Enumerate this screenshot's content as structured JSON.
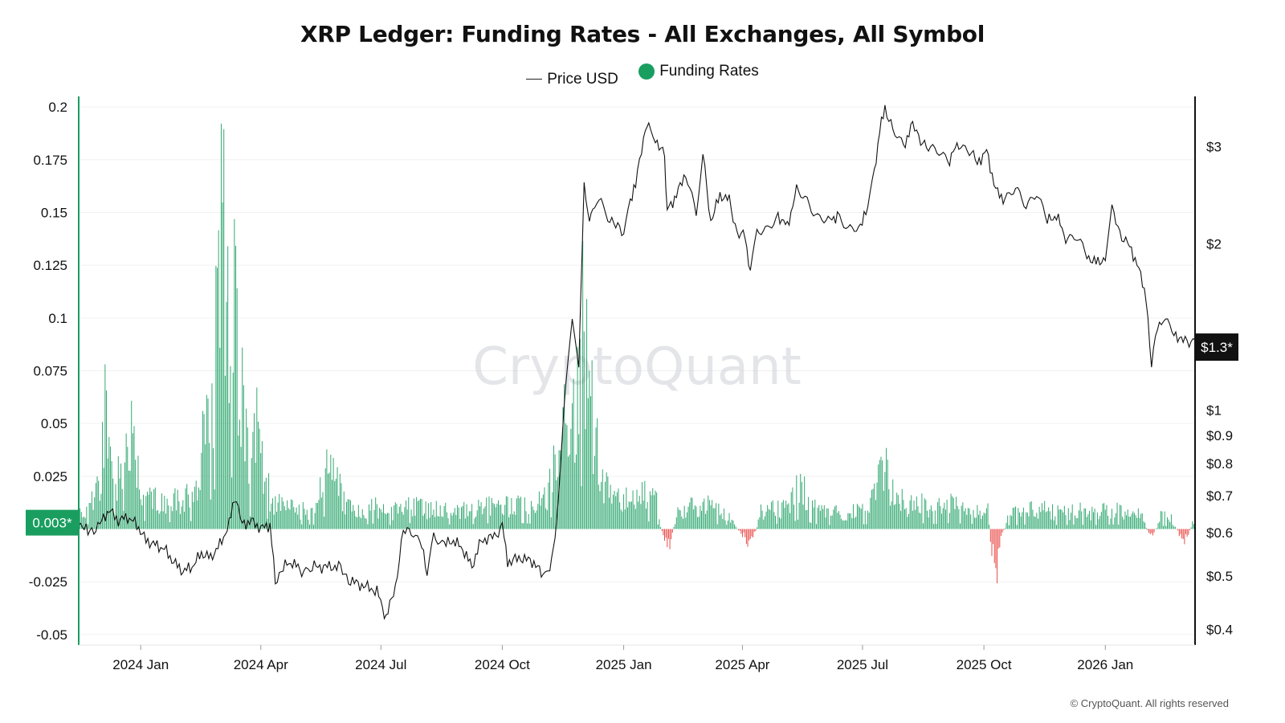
{
  "chart_data": {
    "type": "bar+line",
    "title": "XRP Ledger: Funding Rates - All Exchanges, All Symbol",
    "legend": [
      {
        "name": "Price USD",
        "style": "line",
        "color": "#222222"
      },
      {
        "name": "Funding Rates",
        "style": "dot",
        "color": "#1a9e60"
      }
    ],
    "x_range": [
      "2023-11-15",
      "2026-03-10"
    ],
    "x_ticks": [
      {
        "date": "2024-01-01",
        "label": "2024 Jan"
      },
      {
        "date": "2024-04-01",
        "label": "2024 Apr"
      },
      {
        "date": "2024-07-01",
        "label": "2024 Jul"
      },
      {
        "date": "2024-10-01",
        "label": "2024 Oct"
      },
      {
        "date": "2025-01-01",
        "label": "2025 Jan"
      },
      {
        "date": "2025-04-01",
        "label": "2025 Apr"
      },
      {
        "date": "2025-07-01",
        "label": "2025 Jul"
      },
      {
        "date": "2025-10-01",
        "label": "2025 Oct"
      },
      {
        "date": "2026-01-01",
        "label": "2026 Jan"
      }
    ],
    "y_left": {
      "series": "Funding Rates",
      "ylim": [
        -0.055,
        0.205
      ],
      "ticks": [
        {
          "value": 0.2,
          "label": "0.2"
        },
        {
          "value": 0.175,
          "label": "0.175"
        },
        {
          "value": 0.15,
          "label": "0.15"
        },
        {
          "value": 0.125,
          "label": "0.125"
        },
        {
          "value": 0.1,
          "label": "0.1"
        },
        {
          "value": 0.075,
          "label": "0.075"
        },
        {
          "value": 0.05,
          "label": "0.05"
        },
        {
          "value": 0.025,
          "label": "0.025"
        },
        {
          "value": -0.025,
          "label": "-0.025"
        },
        {
          "value": -0.05,
          "label": "-0.05"
        }
      ],
      "current_label": "0.003*",
      "current_value": 0.003,
      "color": "#1a9e60"
    },
    "y_right": {
      "series": "Price USD",
      "scale": "log",
      "ylim": [
        0.375,
        3.7
      ],
      "ticks": [
        {
          "value": 3,
          "label": "$3"
        },
        {
          "value": 2,
          "label": "$2"
        },
        {
          "value": 1,
          "label": "$1"
        },
        {
          "value": 0.9,
          "label": "$0.9"
        },
        {
          "value": 0.8,
          "label": "$0.8"
        },
        {
          "value": 0.7,
          "label": "$0.7"
        },
        {
          "value": 0.6,
          "label": "$0.6"
        },
        {
          "value": 0.5,
          "label": "$0.5"
        },
        {
          "value": 0.4,
          "label": "$0.4"
        }
      ],
      "current_label": "$1.3*",
      "current_value": 1.3,
      "color": "#111111"
    },
    "price_series": [
      [
        "2023-11-15",
        0.63
      ],
      [
        "2023-11-22",
        0.6
      ],
      [
        "2023-12-01",
        0.62
      ],
      [
        "2023-12-08",
        0.66
      ],
      [
        "2023-12-15",
        0.63
      ],
      [
        "2023-12-22",
        0.64
      ],
      [
        "2023-12-29",
        0.62
      ],
      [
        "2024-01-05",
        0.58
      ],
      [
        "2024-01-12",
        0.57
      ],
      [
        "2024-01-19",
        0.56
      ],
      [
        "2024-01-26",
        0.53
      ],
      [
        "2024-02-02",
        0.51
      ],
      [
        "2024-02-09",
        0.52
      ],
      [
        "2024-02-16",
        0.55
      ],
      [
        "2024-02-23",
        0.54
      ],
      [
        "2024-03-01",
        0.57
      ],
      [
        "2024-03-08",
        0.62
      ],
      [
        "2024-03-12",
        0.7
      ],
      [
        "2024-03-18",
        0.62
      ],
      [
        "2024-03-25",
        0.63
      ],
      [
        "2024-04-01",
        0.61
      ],
      [
        "2024-04-08",
        0.62
      ],
      [
        "2024-04-12",
        0.49
      ],
      [
        "2024-04-18",
        0.52
      ],
      [
        "2024-04-25",
        0.53
      ],
      [
        "2024-05-02",
        0.51
      ],
      [
        "2024-05-10",
        0.52
      ],
      [
        "2024-05-20",
        0.52
      ],
      [
        "2024-05-30",
        0.52
      ],
      [
        "2024-06-08",
        0.49
      ],
      [
        "2024-06-18",
        0.48
      ],
      [
        "2024-06-28",
        0.47
      ],
      [
        "2024-07-05",
        0.42
      ],
      [
        "2024-07-12",
        0.48
      ],
      [
        "2024-07-18",
        0.6
      ],
      [
        "2024-07-24",
        0.61
      ],
      [
        "2024-08-01",
        0.57
      ],
      [
        "2024-08-05",
        0.5
      ],
      [
        "2024-08-10",
        0.6
      ],
      [
        "2024-08-18",
        0.57
      ],
      [
        "2024-08-25",
        0.58
      ],
      [
        "2024-09-01",
        0.56
      ],
      [
        "2024-09-08",
        0.52
      ],
      [
        "2024-09-15",
        0.58
      ],
      [
        "2024-09-25",
        0.59
      ],
      [
        "2024-10-01",
        0.62
      ],
      [
        "2024-10-05",
        0.53
      ],
      [
        "2024-10-15",
        0.54
      ],
      [
        "2024-10-25",
        0.53
      ],
      [
        "2024-11-01",
        0.5
      ],
      [
        "2024-11-06",
        0.52
      ],
      [
        "2024-11-10",
        0.58
      ],
      [
        "2024-11-14",
        0.78
      ],
      [
        "2024-11-18",
        1.12
      ],
      [
        "2024-11-23",
        1.45
      ],
      [
        "2024-11-28",
        1.22
      ],
      [
        "2024-12-02",
        2.55
      ],
      [
        "2024-12-06",
        2.2
      ],
      [
        "2024-12-10",
        2.35
      ],
      [
        "2024-12-15",
        2.4
      ],
      [
        "2024-12-20",
        2.25
      ],
      [
        "2024-12-26",
        2.15
      ],
      [
        "2025-01-01",
        2.1
      ],
      [
        "2025-01-06",
        2.4
      ],
      [
        "2025-01-10",
        2.55
      ],
      [
        "2025-01-16",
        3.15
      ],
      [
        "2025-01-20",
        3.28
      ],
      [
        "2025-01-25",
        3.1
      ],
      [
        "2025-02-01",
        2.9
      ],
      [
        "2025-02-03",
        2.3
      ],
      [
        "2025-02-10",
        2.45
      ],
      [
        "2025-02-17",
        2.7
      ],
      [
        "2025-02-25",
        2.25
      ],
      [
        "2025-03-02",
        2.9
      ],
      [
        "2025-03-08",
        2.2
      ],
      [
        "2025-03-15",
        2.45
      ],
      [
        "2025-03-22",
        2.4
      ],
      [
        "2025-03-28",
        2.1
      ],
      [
        "2025-04-03",
        2.05
      ],
      [
        "2025-04-07",
        1.78
      ],
      [
        "2025-04-12",
        2.1
      ],
      [
        "2025-04-20",
        2.1
      ],
      [
        "2025-04-28",
        2.25
      ],
      [
        "2025-05-05",
        2.15
      ],
      [
        "2025-05-12",
        2.5
      ],
      [
        "2025-05-20",
        2.4
      ],
      [
        "2025-05-28",
        2.25
      ],
      [
        "2025-06-05",
        2.2
      ],
      [
        "2025-06-12",
        2.25
      ],
      [
        "2025-06-20",
        2.1
      ],
      [
        "2025-06-28",
        2.15
      ],
      [
        "2025-07-05",
        2.3
      ],
      [
        "2025-07-10",
        2.7
      ],
      [
        "2025-07-14",
        3.2
      ],
      [
        "2025-07-18",
        3.55
      ],
      [
        "2025-07-24",
        3.2
      ],
      [
        "2025-08-01",
        3.0
      ],
      [
        "2025-08-08",
        3.3
      ],
      [
        "2025-08-14",
        3.1
      ],
      [
        "2025-08-20",
        2.95
      ],
      [
        "2025-08-28",
        2.95
      ],
      [
        "2025-09-05",
        2.85
      ],
      [
        "2025-09-12",
        3.05
      ],
      [
        "2025-09-20",
        2.95
      ],
      [
        "2025-09-26",
        2.8
      ],
      [
        "2025-10-03",
        2.95
      ],
      [
        "2025-10-10",
        2.5
      ],
      [
        "2025-10-17",
        2.4
      ],
      [
        "2025-10-25",
        2.5
      ],
      [
        "2025-11-02",
        2.35
      ],
      [
        "2025-11-10",
        2.5
      ],
      [
        "2025-11-18",
        2.2
      ],
      [
        "2025-11-25",
        2.25
      ],
      [
        "2025-12-02",
        2.05
      ],
      [
        "2025-12-10",
        2.05
      ],
      [
        "2025-12-18",
        1.9
      ],
      [
        "2025-12-25",
        1.85
      ],
      [
        "2026-01-01",
        1.88
      ],
      [
        "2026-01-06",
        2.3
      ],
      [
        "2026-01-12",
        2.1
      ],
      [
        "2026-01-18",
        2.0
      ],
      [
        "2026-01-25",
        1.85
      ],
      [
        "2026-02-01",
        1.6
      ],
      [
        "2026-02-05",
        1.18
      ],
      [
        "2026-02-08",
        1.4
      ],
      [
        "2026-02-14",
        1.45
      ],
      [
        "2026-02-22",
        1.38
      ],
      [
        "2026-03-01",
        1.33
      ],
      [
        "2026-03-10",
        1.34
      ]
    ],
    "funding_series": [
      [
        "2023-11-15",
        0.014
      ],
      [
        "2023-11-22",
        0.011
      ],
      [
        "2023-12-01",
        0.03
      ],
      [
        "2023-12-06",
        0.085
      ],
      [
        "2023-12-12",
        0.028
      ],
      [
        "2023-12-18",
        0.04
      ],
      [
        "2023-12-24",
        0.06
      ],
      [
        "2024-01-01",
        0.02
      ],
      [
        "2024-01-10",
        0.018
      ],
      [
        "2024-01-20",
        0.016
      ],
      [
        "2024-01-30",
        0.017
      ],
      [
        "2024-02-06",
        0.018
      ],
      [
        "2024-02-12",
        0.02
      ],
      [
        "2024-02-17",
        0.05
      ],
      [
        "2024-02-22",
        0.062
      ],
      [
        "2024-02-28",
        0.11
      ],
      [
        "2024-03-04",
        0.19
      ],
      [
        "2024-03-08",
        0.12
      ],
      [
        "2024-03-13",
        0.125
      ],
      [
        "2024-03-18",
        0.075
      ],
      [
        "2024-03-24",
        0.03
      ],
      [
        "2024-03-30",
        0.06
      ],
      [
        "2024-04-04",
        0.03
      ],
      [
        "2024-04-09",
        0.016
      ],
      [
        "2024-04-20",
        0.012
      ],
      [
        "2024-05-02",
        0.011
      ],
      [
        "2024-05-12",
        0.01
      ],
      [
        "2024-05-20",
        0.032
      ],
      [
        "2024-05-28",
        0.026
      ],
      [
        "2024-06-06",
        0.012
      ],
      [
        "2024-06-16",
        0.01
      ],
      [
        "2024-06-26",
        0.013
      ],
      [
        "2024-07-06",
        0.009
      ],
      [
        "2024-07-16",
        0.012
      ],
      [
        "2024-07-26",
        0.015
      ],
      [
        "2024-08-06",
        0.01
      ],
      [
        "2024-08-16",
        0.012
      ],
      [
        "2024-08-26",
        0.01
      ],
      [
        "2024-09-06",
        0.011
      ],
      [
        "2024-09-16",
        0.013
      ],
      [
        "2024-09-26",
        0.014
      ],
      [
        "2024-10-06",
        0.013
      ],
      [
        "2024-10-16",
        0.014
      ],
      [
        "2024-10-26",
        0.012
      ],
      [
        "2024-11-04",
        0.02
      ],
      [
        "2024-11-10",
        0.035
      ],
      [
        "2024-11-15",
        0.05
      ],
      [
        "2024-11-20",
        0.068
      ],
      [
        "2024-11-26",
        0.06
      ],
      [
        "2024-12-01",
        0.112
      ],
      [
        "2024-12-06",
        0.078
      ],
      [
        "2024-12-12",
        0.045
      ],
      [
        "2024-12-18",
        0.025
      ],
      [
        "2024-12-26",
        0.02
      ],
      [
        "2025-01-06",
        0.016
      ],
      [
        "2025-01-16",
        0.02
      ],
      [
        "2025-01-26",
        0.015
      ],
      [
        "2025-02-03",
        -0.021
      ],
      [
        "2025-02-10",
        0.01
      ],
      [
        "2025-02-20",
        0.012
      ],
      [
        "2025-03-01",
        0.015
      ],
      [
        "2025-03-10",
        0.012
      ],
      [
        "2025-03-20",
        0.01
      ],
      [
        "2025-04-07",
        -0.012
      ],
      [
        "2025-04-15",
        0.01
      ],
      [
        "2025-04-25",
        0.013
      ],
      [
        "2025-05-05",
        0.011
      ],
      [
        "2025-05-15",
        0.025
      ],
      [
        "2025-05-25",
        0.012
      ],
      [
        "2025-06-05",
        0.01
      ],
      [
        "2025-06-15",
        0.009
      ],
      [
        "2025-06-25",
        0.01
      ],
      [
        "2025-07-06",
        0.012
      ],
      [
        "2025-07-12",
        0.024
      ],
      [
        "2025-07-17",
        0.036
      ],
      [
        "2025-07-24",
        0.02
      ],
      [
        "2025-08-04",
        0.013
      ],
      [
        "2025-08-14",
        0.014
      ],
      [
        "2025-08-24",
        0.012
      ],
      [
        "2025-09-04",
        0.014
      ],
      [
        "2025-09-14",
        0.013
      ],
      [
        "2025-09-24",
        0.012
      ],
      [
        "2025-10-04",
        0.011
      ],
      [
        "2025-10-10",
        -0.044
      ],
      [
        "2025-10-13",
        -0.01
      ],
      [
        "2025-10-20",
        0.009
      ],
      [
        "2025-10-30",
        0.01
      ],
      [
        "2025-11-10",
        0.012
      ],
      [
        "2025-11-20",
        0.01
      ],
      [
        "2025-11-30",
        0.009
      ],
      [
        "2025-12-10",
        0.011
      ],
      [
        "2025-12-20",
        0.009
      ],
      [
        "2025-12-30",
        0.01
      ],
      [
        "2026-01-08",
        0.011
      ],
      [
        "2026-01-18",
        0.009
      ],
      [
        "2026-01-28",
        0.008
      ],
      [
        "2026-02-05",
        -0.006
      ],
      [
        "2026-02-12",
        0.008
      ],
      [
        "2026-02-20",
        0.006
      ],
      [
        "2026-03-02",
        -0.01
      ],
      [
        "2026-03-08",
        0.004
      ]
    ],
    "positive_color": "#1a9e60",
    "negative_color": "#e53935",
    "watermark": "CryptoQuant"
  },
  "copyright": "© CryptoQuant. All rights reserved"
}
